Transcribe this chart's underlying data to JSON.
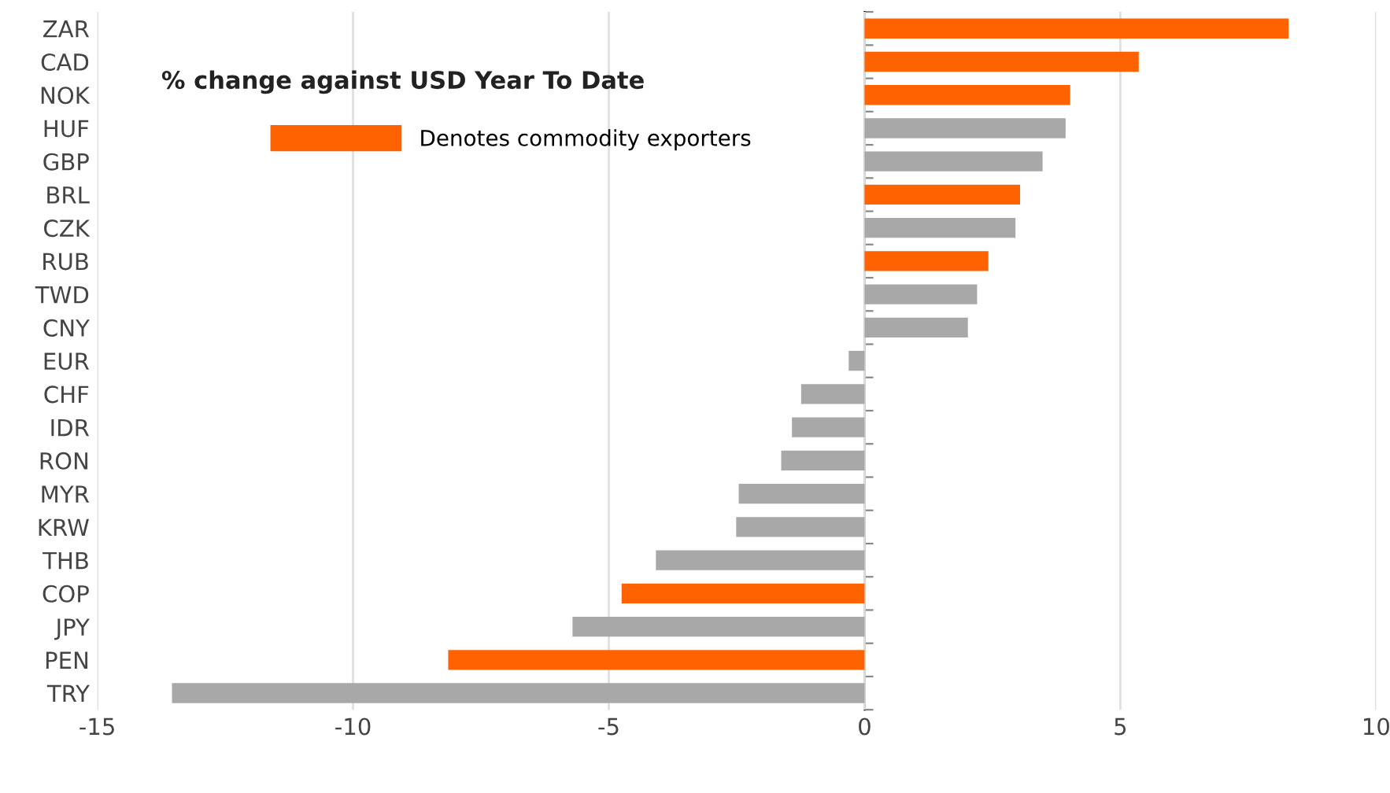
{
  "chart_data": {
    "type": "bar",
    "orientation": "horizontal",
    "title": "% change against USD Year To Date",
    "categories": [
      "ZAR",
      "CAD",
      "NOK",
      "HUF",
      "GBP",
      "BRL",
      "CZK",
      "RUB",
      "TWD",
      "CNY",
      "EUR",
      "CHF",
      "IDR",
      "RON",
      "MYR",
      "KRW",
      "THB",
      "COP",
      "JPY",
      "PEN",
      "TRY"
    ],
    "series": [
      {
        "name": "Denotes commodity exporters",
        "color": "#ff6200",
        "values": [
          8.29,
          5.36,
          4.02,
          null,
          null,
          3.04,
          null,
          2.42,
          null,
          null,
          null,
          null,
          null,
          null,
          null,
          null,
          null,
          -4.75,
          null,
          -8.14,
          null
        ]
      },
      {
        "color": "#a8a8a8",
        "values": [
          null,
          null,
          null,
          3.93,
          3.48,
          null,
          2.95,
          null,
          2.2,
          2.02,
          -0.31,
          -1.24,
          -1.42,
          -1.63,
          -2.46,
          -2.51,
          -4.08,
          null,
          -5.71,
          null,
          -13.54
        ]
      }
    ],
    "xlim": [
      -15,
      10
    ],
    "xticks": [
      -15,
      -10,
      -5,
      0,
      5,
      10
    ],
    "grid": "x",
    "legend": "top left"
  }
}
